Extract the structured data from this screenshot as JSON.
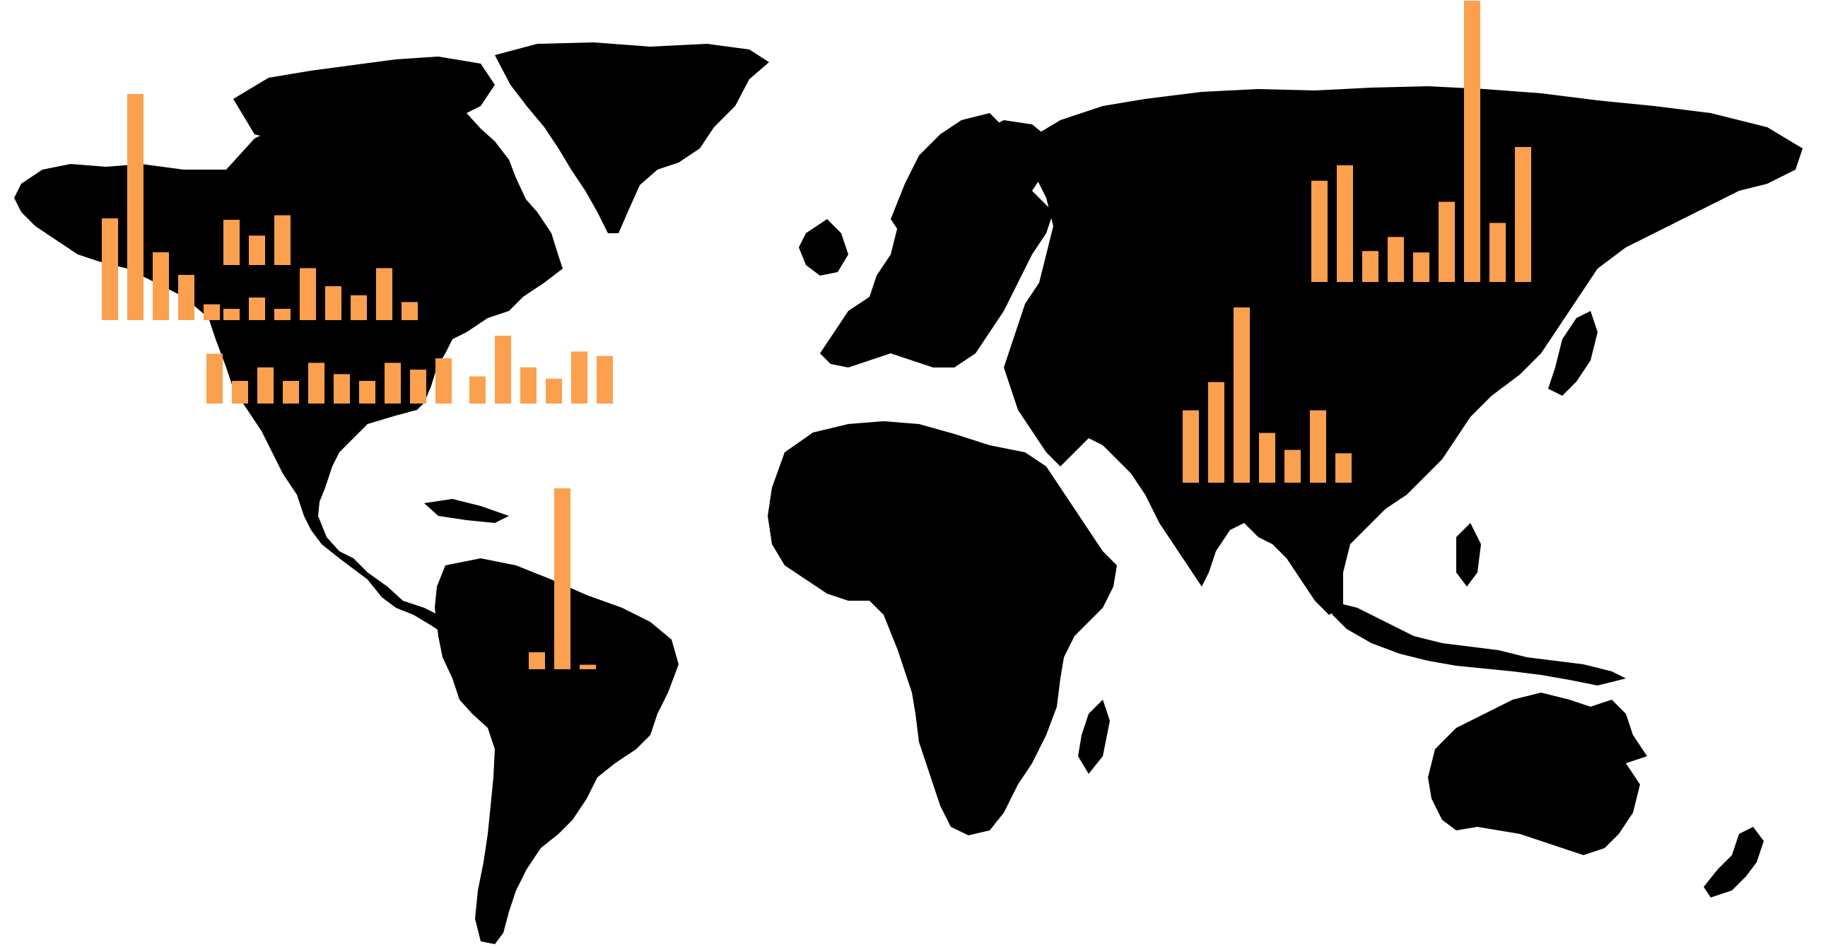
{
  "map": {
    "land_color": "#000000",
    "background_color": "#ffffff",
    "bar_color": "#fba04f"
  },
  "chart_data": [
    {
      "type": "bar",
      "region": "alaska",
      "values": [
        45,
        100,
        30,
        20,
        7,
        0
      ]
    },
    {
      "type": "bar",
      "region": "canada",
      "values": [
        20,
        13,
        22,
        0,
        0
      ]
    },
    {
      "type": "bar",
      "region": "usa-north",
      "values": [
        5,
        10,
        5,
        23,
        15,
        11,
        23,
        8
      ]
    },
    {
      "type": "bar",
      "region": "usa-south",
      "values": [
        22,
        10,
        16,
        10,
        18,
        13,
        10,
        18,
        15,
        20
      ]
    },
    {
      "type": "bar",
      "region": "northeast",
      "values": [
        12,
        30,
        16,
        11,
        23,
        21
      ]
    },
    {
      "type": "bar",
      "region": "south-america",
      "values": [
        15,
        160,
        4
      ]
    },
    {
      "type": "bar",
      "region": "south-asia",
      "values": [
        64,
        89,
        155,
        44,
        29,
        64,
        26
      ]
    },
    {
      "type": "bar",
      "region": "siberia",
      "values": [
        72,
        83,
        22,
        32,
        21,
        57,
        200,
        42,
        96
      ]
    }
  ]
}
